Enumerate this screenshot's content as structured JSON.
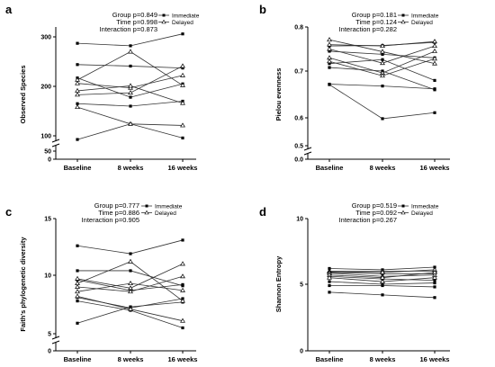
{
  "chart_data": [
    {
      "panel_label": "a",
      "type": "line",
      "ylabel": "Observed Species",
      "categories": [
        "Baseline",
        "8 weeks",
        "16 weeks"
      ],
      "yticks": [
        0,
        50,
        100,
        200,
        300
      ],
      "ytick_labels": [
        "0",
        "50",
        "100",
        "200",
        "300"
      ],
      "axis_break": true,
      "annotations": [
        "Group p=0.849",
        "Time p=0.998",
        "Interaction p=0.873"
      ],
      "legend": [
        "Immediate",
        "Delayed"
      ],
      "series": [
        {
          "group": "Immediate",
          "values": [
            287,
            282,
            306
          ]
        },
        {
          "group": "Immediate",
          "values": [
            244,
            241,
            237
          ]
        },
        {
          "group": "Immediate",
          "values": [
            217,
            178,
            205
          ]
        },
        {
          "group": "Immediate",
          "values": [
            165,
            160,
            170
          ]
        },
        {
          "group": "Immediate",
          "values": [
            88,
            124,
            93
          ]
        },
        {
          "group": "Delayed",
          "values": [
            213,
            270,
            202
          ]
        },
        {
          "group": "Delayed",
          "values": [
            206,
            197,
            222
          ]
        },
        {
          "group": "Delayed",
          "values": [
            191,
            201,
            166
          ]
        },
        {
          "group": "Delayed",
          "values": [
            183,
            187,
            241
          ]
        },
        {
          "group": "Delayed",
          "values": [
            158,
            124,
            121
          ]
        }
      ]
    },
    {
      "panel_label": "b",
      "type": "line",
      "ylabel": "Pielou evenness",
      "categories": [
        "Baseline",
        "8 weeks",
        "16 weeks"
      ],
      "yticks": [
        0.0,
        0.5,
        0.6,
        0.7,
        0.8
      ],
      "ytick_labels": [
        "0.0",
        "0.5",
        "0.6",
        "0.7",
        "0.8"
      ],
      "axis_break": true,
      "annotations": [
        "Group p=0.181",
        "Time p=0.124",
        "Interaction p=0.282"
      ],
      "legend": [
        "Immediate",
        "Delayed"
      ],
      "series": [
        {
          "group": "Immediate",
          "values": [
            0.757,
            0.758,
            0.765
          ]
        },
        {
          "group": "Immediate",
          "values": [
            0.745,
            0.738,
            0.73
          ]
        },
        {
          "group": "Immediate",
          "values": [
            0.717,
            0.726,
            0.68
          ]
        },
        {
          "group": "Immediate",
          "values": [
            0.708,
            0.7,
            0.66
          ]
        },
        {
          "group": "Immediate",
          "values": [
            0.672,
            0.668,
            0.662
          ]
        },
        {
          "group": "Immediate",
          "values": [
            0.671,
            0.597,
            0.611
          ]
        },
        {
          "group": "Delayed",
          "values": [
            0.771,
            0.744,
            0.717
          ]
        },
        {
          "group": "Delayed",
          "values": [
            0.76,
            0.757,
            0.767
          ]
        },
        {
          "group": "Delayed",
          "values": [
            0.75,
            0.718,
            0.757
          ]
        },
        {
          "group": "Delayed",
          "values": [
            0.73,
            0.696,
            0.745
          ]
        },
        {
          "group": "Delayed",
          "values": [
            0.722,
            0.69,
            0.728
          ]
        }
      ]
    },
    {
      "panel_label": "c",
      "type": "line",
      "ylabel": "Faith's phylogenetic diversity",
      "categories": [
        "Baseline",
        "8 weeks",
        "16 weeks"
      ],
      "yticks": [
        0,
        5,
        10,
        15
      ],
      "ytick_labels": [
        "0",
        "5",
        "10",
        "15"
      ],
      "axis_break": true,
      "annotations": [
        "Group p=0.777",
        "Time p=0.886",
        "Interaction p=0.905"
      ],
      "legend": [
        "Immediate",
        "Delayed"
      ],
      "series": [
        {
          "group": "Immediate",
          "values": [
            12.6,
            11.9,
            13.1
          ]
        },
        {
          "group": "Immediate",
          "values": [
            10.4,
            10.4,
            9.1
          ]
        },
        {
          "group": "Immediate",
          "values": [
            9.6,
            8.7,
            9.2
          ]
        },
        {
          "group": "Immediate",
          "values": [
            8.1,
            7.2,
            8.0
          ]
        },
        {
          "group": "Immediate",
          "values": [
            7.8,
            7.0,
            5.5
          ]
        },
        {
          "group": "Immediate",
          "values": [
            5.9,
            7.3,
            7.7
          ]
        },
        {
          "group": "Delayed",
          "values": [
            9.3,
            11.2,
            7.8
          ]
        },
        {
          "group": "Delayed",
          "values": [
            9.7,
            8.9,
            11.0
          ]
        },
        {
          "group": "Delayed",
          "values": [
            9.0,
            8.6,
            9.9
          ]
        },
        {
          "group": "Delayed",
          "values": [
            8.6,
            9.3,
            8.7
          ]
        },
        {
          "group": "Delayed",
          "values": [
            8.2,
            7.1,
            6.1
          ]
        }
      ]
    },
    {
      "panel_label": "d",
      "type": "line",
      "ylabel": "Shannon Entropy",
      "categories": [
        "Baseline",
        "8 weeks",
        "16 weeks"
      ],
      "yticks": [
        0,
        5,
        10
      ],
      "ytick_labels": [
        "0",
        "5",
        "10"
      ],
      "axis_break": false,
      "annotations": [
        "Group p=0.519",
        "Time p=0.092",
        "Interaction p=0.267"
      ],
      "legend": [
        "Immediate",
        "Delayed"
      ],
      "series": [
        {
          "group": "Immediate",
          "values": [
            6.2,
            6.1,
            6.3
          ]
        },
        {
          "group": "Immediate",
          "values": [
            5.9,
            5.8,
            5.8
          ]
        },
        {
          "group": "Immediate",
          "values": [
            5.6,
            5.4,
            5.3
          ]
        },
        {
          "group": "Immediate",
          "values": [
            5.2,
            5.0,
            5.1
          ]
        },
        {
          "group": "Immediate",
          "values": [
            4.9,
            4.9,
            4.8
          ]
        },
        {
          "group": "Immediate",
          "values": [
            4.4,
            4.2,
            4.0
          ]
        },
        {
          "group": "Delayed",
          "values": [
            6.0,
            6.0,
            6.0
          ]
        },
        {
          "group": "Delayed",
          "values": [
            5.95,
            5.9,
            6.1
          ]
        },
        {
          "group": "Delayed",
          "values": [
            5.85,
            5.6,
            5.7
          ]
        },
        {
          "group": "Delayed",
          "values": [
            5.7,
            5.5,
            5.9
          ]
        },
        {
          "group": "Delayed",
          "values": [
            5.5,
            5.2,
            5.5
          ]
        }
      ]
    }
  ]
}
